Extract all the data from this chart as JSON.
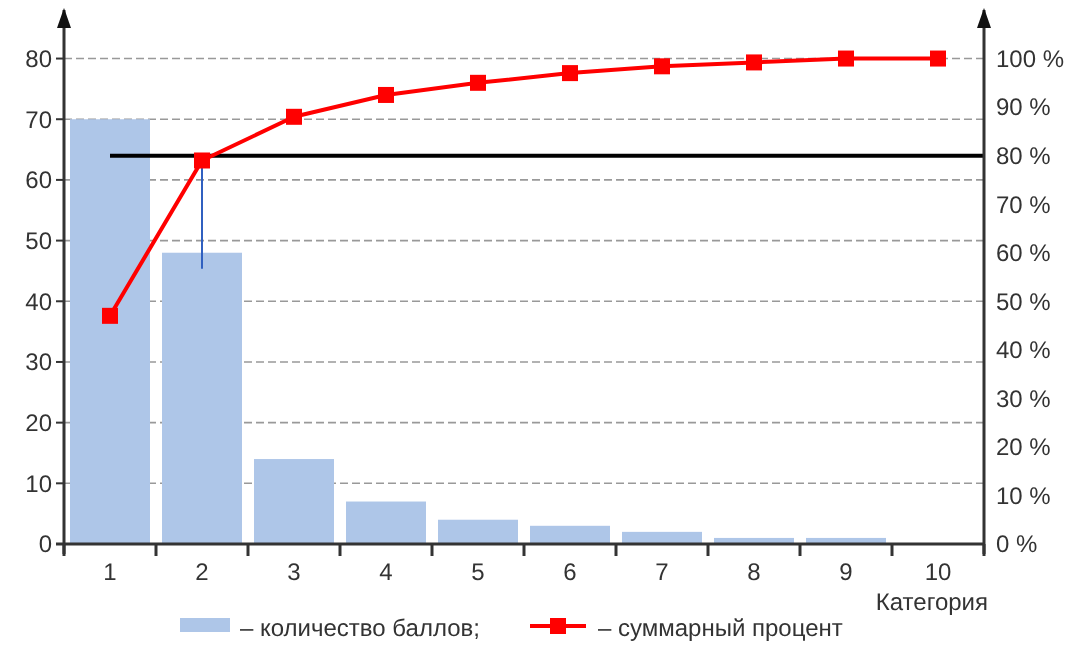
{
  "chart_data": {
    "type": "bar",
    "xlabel": "Категория",
    "categories": [
      "1",
      "2",
      "3",
      "4",
      "5",
      "6",
      "7",
      "8",
      "9",
      "10"
    ],
    "series": [
      {
        "name": "– количество баллов;",
        "color": "#aec6e8",
        "values": [
          70,
          48,
          14,
          7,
          4,
          3,
          2,
          1,
          1,
          0
        ]
      },
      {
        "name": "– суммарный процент",
        "type": "line",
        "axis": "y2",
        "color": "#ff0000",
        "marker": "square",
        "values": [
          47,
          79,
          88,
          92.5,
          95,
          97,
          98.4,
          99.2,
          100,
          100
        ]
      }
    ],
    "ylim": [
      0,
      88
    ],
    "yticks": [
      0,
      10,
      20,
      30,
      40,
      50,
      60,
      70,
      80
    ],
    "y2lim": [
      0,
      110
    ],
    "y2ticks": [
      {
        "value": 0,
        "label": "0 %"
      },
      {
        "value": 10,
        "label": "10 %"
      },
      {
        "value": 20,
        "label": "20 %"
      },
      {
        "value": 30,
        "label": "30 %"
      },
      {
        "value": 40,
        "label": "40 %"
      },
      {
        "value": 50,
        "label": "50 %"
      },
      {
        "value": 60,
        "label": "60 %"
      },
      {
        "value": 70,
        "label": "70 %"
      },
      {
        "value": 80,
        "label": "80 %"
      },
      {
        "value": 90,
        "label": "90 %"
      },
      {
        "value": 100,
        "label": "100 %"
      }
    ],
    "ref_lines": [
      {
        "axis": "y2",
        "value": 80,
        "color": "#000000"
      }
    ],
    "grid": "y",
    "legend": "bottom"
  }
}
